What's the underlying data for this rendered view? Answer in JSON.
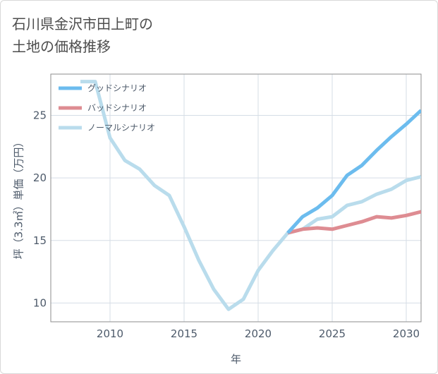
{
  "title_lines": [
    "石川県金沢市田上町の",
    "土地の価格推移"
  ],
  "chart_data": {
    "type": "line",
    "xlabel": "年",
    "ylabel": "坪（3.3㎡）単価（万円）",
    "xlim": [
      2006,
      2031
    ],
    "ylim": [
      8.5,
      28.3
    ],
    "xticks": [
      2010,
      2015,
      2020,
      2025,
      2030
    ],
    "yticks": [
      10,
      15,
      20,
      25
    ],
    "grid": true,
    "legend_position": "top-left",
    "series": [
      {
        "name": "グッドシナリオ",
        "color": "#6cbcee",
        "x": [
          2022,
          2023,
          2024,
          2025,
          2026,
          2027,
          2028,
          2029,
          2030,
          2031
        ],
        "y": [
          15.6,
          16.9,
          17.6,
          18.6,
          20.2,
          21.0,
          22.2,
          23.3,
          24.3,
          25.4
        ]
      },
      {
        "name": "バッドシナリオ",
        "color": "#de8c92",
        "x": [
          2022,
          2023,
          2024,
          2025,
          2026,
          2027,
          2028,
          2029,
          2030,
          2031
        ],
        "y": [
          15.6,
          15.9,
          16.0,
          15.9,
          16.2,
          16.5,
          16.9,
          16.8,
          17.0,
          17.3
        ]
      },
      {
        "name": "ノーマルシナリオ",
        "color": "#b9dcec",
        "x": [
          2008,
          2009,
          2010,
          2011,
          2012,
          2013,
          2014,
          2015,
          2016,
          2017,
          2018,
          2019,
          2020,
          2021,
          2022,
          2023,
          2024,
          2025,
          2026,
          2027,
          2028,
          2029,
          2030,
          2031
        ],
        "y": [
          27.7,
          27.7,
          23.2,
          21.4,
          20.7,
          19.4,
          18.6,
          16.1,
          13.4,
          11.1,
          9.5,
          10.3,
          12.6,
          14.2,
          15.6,
          15.9,
          16.7,
          16.9,
          17.8,
          18.1,
          18.7,
          19.1,
          19.8,
          20.1
        ]
      }
    ]
  }
}
